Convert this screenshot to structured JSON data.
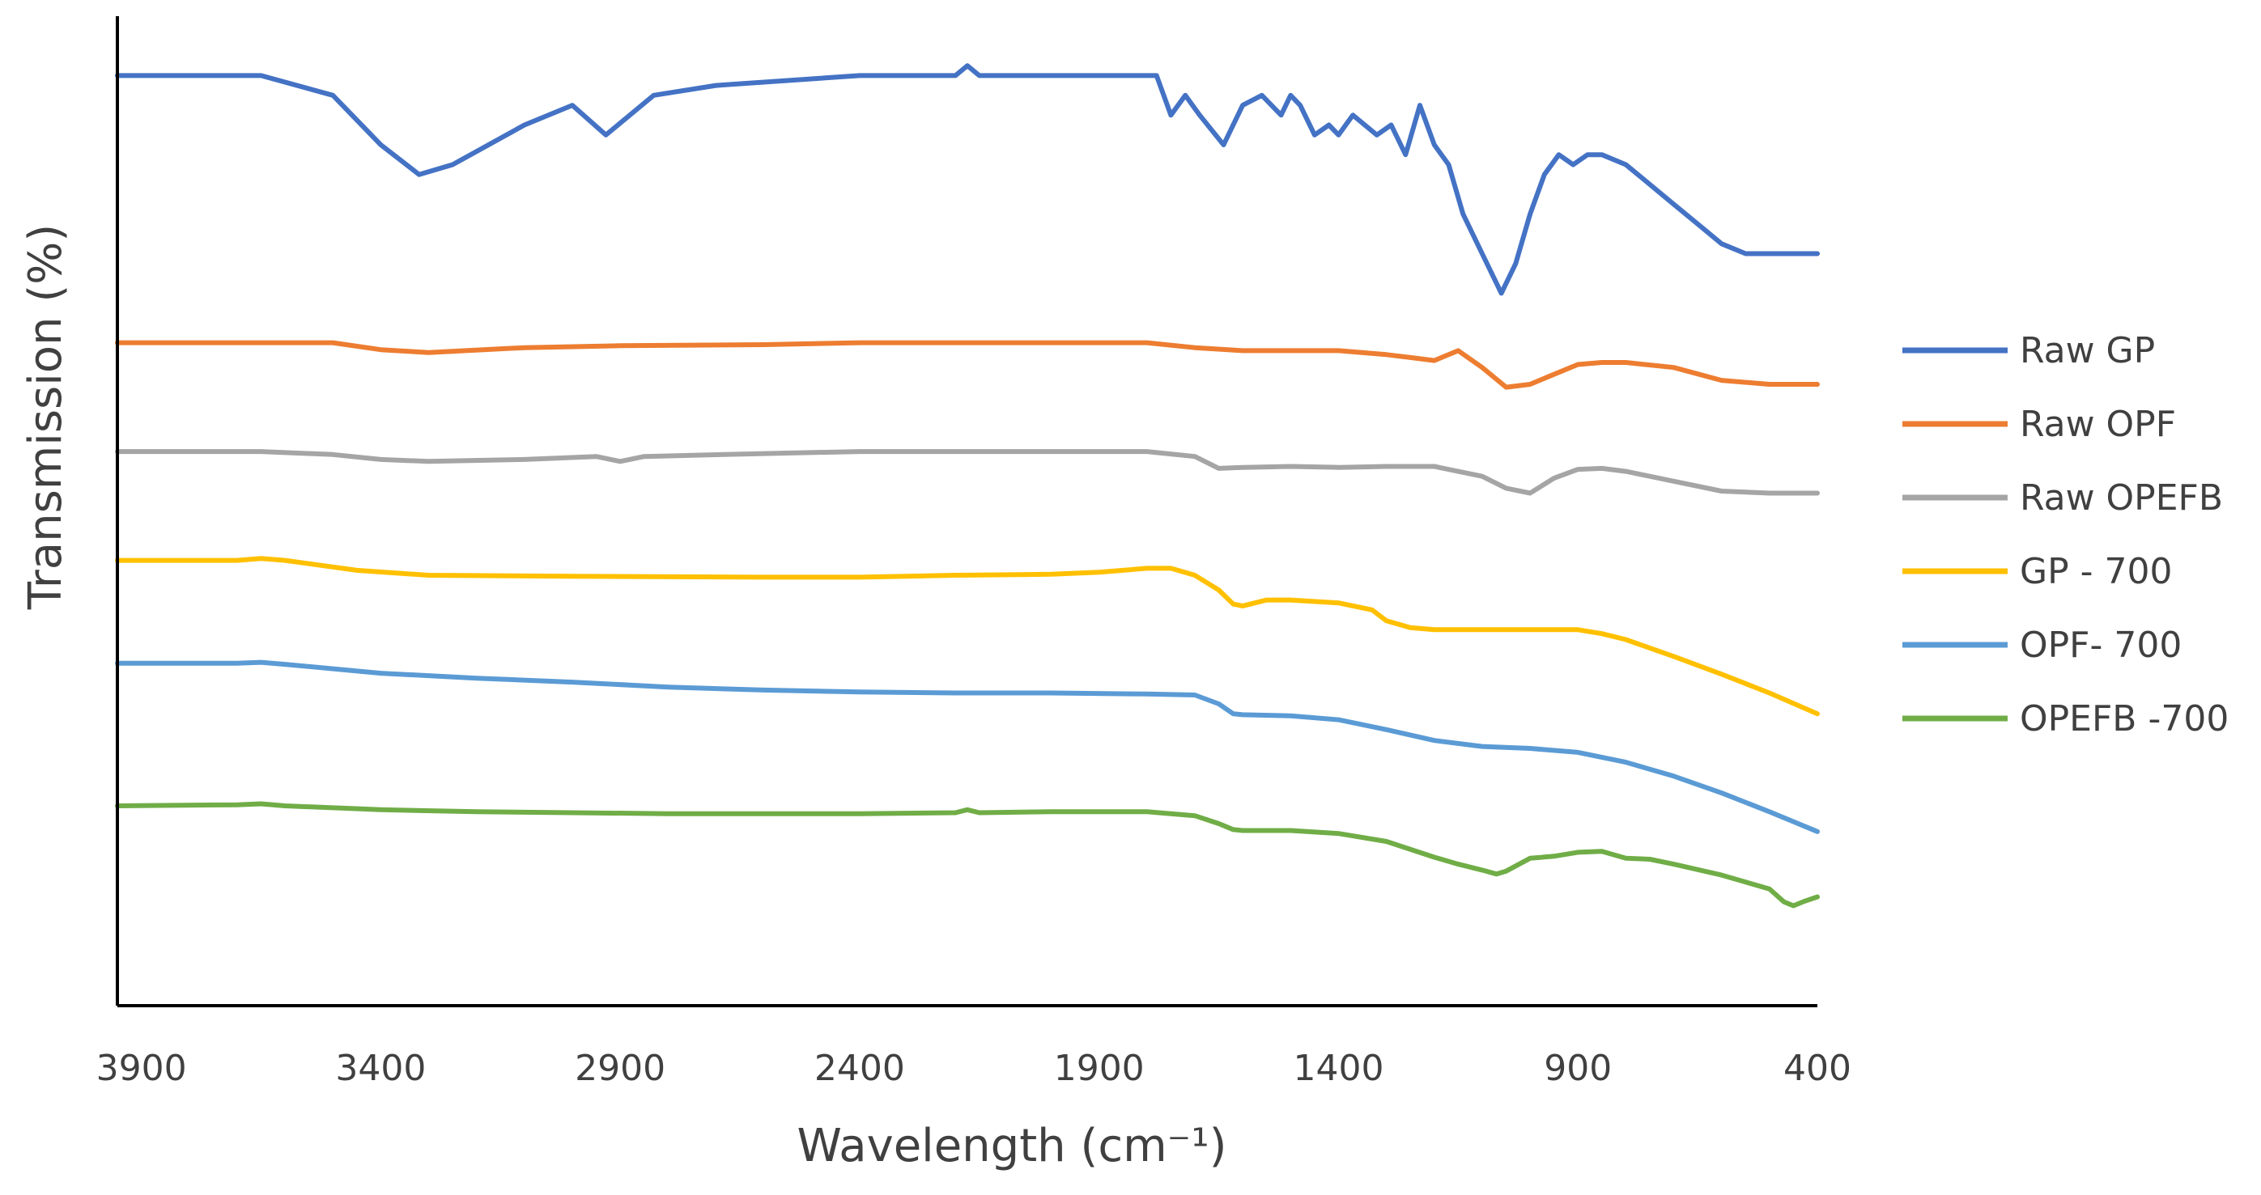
{
  "chart_data": {
    "type": "line",
    "title": "",
    "xlabel": "Wavelength (cm⁻¹)",
    "ylabel": "Transmission (%)",
    "xlim": [
      3950,
      400
    ],
    "x_reversed": true,
    "ylim": [
      0,
      100
    ],
    "y_ticks_shown": false,
    "grid": false,
    "legend_position": "right",
    "x_ticks": [
      3900,
      3400,
      2900,
      2400,
      1900,
      1400,
      900,
      400
    ],
    "x_tick_labels": [
      "3900",
      "3400",
      "2900",
      "2400",
      "1900",
      "1400",
      "900",
      "400"
    ],
    "series": [
      {
        "name": "Raw GP",
        "color": "#4472C4",
        "x": [
          3950,
          3650,
          3500,
          3400,
          3320,
          3250,
          3100,
          3000,
          2930,
          2880,
          2830,
          2700,
          2400,
          2200,
          2175,
          2150,
          2000,
          1900,
          1780,
          1750,
          1720,
          1690,
          1640,
          1600,
          1560,
          1520,
          1500,
          1480,
          1450,
          1420,
          1400,
          1370,
          1320,
          1290,
          1260,
          1230,
          1200,
          1170,
          1140,
          1100,
          1060,
          1030,
          1000,
          970,
          940,
          910,
          880,
          850,
          800,
          750,
          700,
          650,
          600,
          550,
          500,
          460,
          430,
          400
        ],
        "values": [
          94,
          94,
          92,
          87,
          84,
          85,
          89,
          91,
          88,
          90,
          92,
          93,
          94,
          94,
          95,
          94,
          94,
          94,
          94,
          90,
          92,
          90,
          87,
          91,
          92,
          90,
          92,
          91,
          88,
          89,
          88,
          90,
          88,
          89,
          86,
          91,
          87,
          85,
          80,
          76,
          72,
          75,
          80,
          84,
          86,
          85,
          86,
          86,
          85,
          83,
          81,
          79,
          77,
          76,
          76,
          76,
          76,
          76
        ]
      },
      {
        "name": "Raw OPF",
        "color": "#ED7D31",
        "x": [
          3950,
          3650,
          3500,
          3400,
          3300,
          3100,
          2900,
          2600,
          2400,
          2200,
          2000,
          1800,
          1700,
          1600,
          1500,
          1400,
          1300,
          1250,
          1200,
          1150,
          1100,
          1050,
          1000,
          950,
          900,
          850,
          800,
          700,
          600,
          500,
          400
        ],
        "values": [
          67,
          67,
          67,
          66.3,
          66,
          66.5,
          66.7,
          66.8,
          67,
          67,
          67,
          67,
          66.5,
          66.2,
          66.2,
          66.2,
          65.8,
          65.5,
          65.2,
          66.2,
          64.5,
          62.5,
          62.8,
          63.8,
          64.8,
          65,
          65,
          64.5,
          63.2,
          62.8,
          62.8
        ]
      },
      {
        "name": "Raw OPEFB",
        "color": "#A5A5A5",
        "x": [
          3950,
          3650,
          3500,
          3400,
          3300,
          3100,
          2950,
          2900,
          2850,
          2600,
          2400,
          2200,
          2000,
          1800,
          1700,
          1650,
          1600,
          1500,
          1400,
          1300,
          1200,
          1100,
          1050,
          1000,
          950,
          900,
          850,
          800,
          700,
          600,
          500,
          400
        ],
        "values": [
          56,
          56,
          55.7,
          55.2,
          55,
          55.2,
          55.5,
          55,
          55.5,
          55.8,
          56,
          56,
          56,
          56,
          55.5,
          54.3,
          54.4,
          54.5,
          54.4,
          54.5,
          54.5,
          53.5,
          52.3,
          51.8,
          53.3,
          54.2,
          54.3,
          54,
          53,
          52,
          51.8,
          51.8
        ]
      },
      {
        "name": "GP - 700",
        "color": "#FFC000",
        "x": [
          3950,
          3700,
          3650,
          3600,
          3450,
          3300,
          3000,
          2600,
          2400,
          2200,
          2000,
          1900,
          1800,
          1750,
          1700,
          1650,
          1620,
          1600,
          1550,
          1500,
          1400,
          1330,
          1300,
          1250,
          1200,
          1100,
          1000,
          900,
          850,
          800,
          700,
          600,
          500,
          400
        ],
        "values": [
          45,
          45,
          45.2,
          45,
          44,
          43.5,
          43.4,
          43.3,
          43.3,
          43.5,
          43.6,
          43.8,
          44.2,
          44.2,
          43.5,
          42,
          40.6,
          40.4,
          41,
          41,
          40.7,
          40,
          38.9,
          38.2,
          38,
          38,
          38,
          38,
          37.6,
          37,
          35.3,
          33.5,
          31.6,
          29.5
        ]
      },
      {
        "name": "OPF- 700",
        "color": "#5B9BD5",
        "x": [
          3950,
          3700,
          3650,
          3600,
          3400,
          3200,
          3000,
          2800,
          2600,
          2400,
          2200,
          2000,
          1800,
          1700,
          1650,
          1620,
          1600,
          1500,
          1400,
          1300,
          1200,
          1100,
          1000,
          900,
          800,
          700,
          600,
          500,
          400
        ],
        "values": [
          34.6,
          34.6,
          34.7,
          34.5,
          33.6,
          33.1,
          32.7,
          32.2,
          31.9,
          31.7,
          31.6,
          31.6,
          31.5,
          31.4,
          30.5,
          29.5,
          29.4,
          29.3,
          28.9,
          27.9,
          26.8,
          26.2,
          26,
          25.6,
          24.6,
          23.2,
          21.5,
          19.6,
          17.6
        ]
      },
      {
        "name": "OPEFB -700",
        "color": "#70AD47",
        "x": [
          3950,
          3700,
          3650,
          3600,
          3400,
          3200,
          3000,
          2800,
          2600,
          2400,
          2200,
          2175,
          2150,
          2000,
          1800,
          1700,
          1650,
          1620,
          1600,
          1500,
          1400,
          1300,
          1200,
          1150,
          1100,
          1070,
          1050,
          1000,
          950,
          900,
          850,
          800,
          750,
          700,
          600,
          500,
          470,
          450,
          430,
          400
        ],
        "values": [
          20.2,
          20.3,
          20.4,
          20.2,
          19.8,
          19.6,
          19.5,
          19.4,
          19.4,
          19.4,
          19.5,
          19.8,
          19.5,
          19.6,
          19.6,
          19.2,
          18.4,
          17.8,
          17.7,
          17.7,
          17.4,
          16.6,
          15,
          14.3,
          13.7,
          13.3,
          13.6,
          14.9,
          15.1,
          15.5,
          15.6,
          14.9,
          14.8,
          14.3,
          13.2,
          11.8,
          10.5,
          10.1,
          10.5,
          11
        ]
      }
    ]
  }
}
